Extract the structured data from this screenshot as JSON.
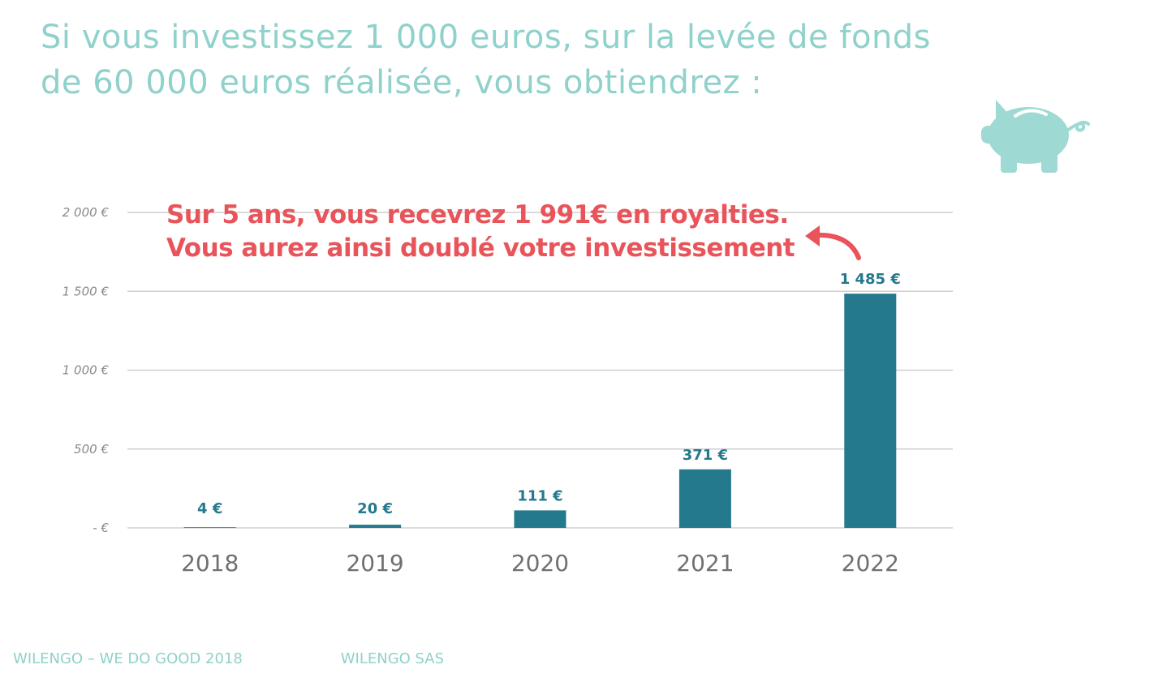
{
  "title": {
    "line1": "Si vous investissez 1 000 euros, sur la levée de fonds",
    "line2": "de 60 000 euros réalisée, vous obtiendrez :"
  },
  "icons": {
    "piggy": "piggy-bank-icon",
    "arrow": "curved-arrow-icon"
  },
  "colors": {
    "title": "#8fd1cb",
    "bar": "#24798c",
    "annotation": "#e8545a",
    "grid": "#cfcfcf",
    "piggy": "#9fd9d3",
    "footer": "#8fd1cb"
  },
  "chart_data": {
    "type": "bar",
    "categories": [
      "2018",
      "2019",
      "2020",
      "2021",
      "2022"
    ],
    "values": [
      4,
      20,
      111,
      371,
      1485
    ],
    "data_labels": [
      "4 €",
      "20 €",
      "111 €",
      "371 €",
      "1 485 €"
    ],
    "yticks": [
      {
        "value": 2000,
        "label": "2 000 €"
      },
      {
        "value": 1500,
        "label": "1 500 €"
      },
      {
        "value": 1000,
        "label": "1 000 €"
      },
      {
        "value": 500,
        "label": "500 €"
      },
      {
        "value": 0,
        "label": "-   €"
      }
    ],
    "ylim": [
      0,
      2000
    ],
    "grid": true,
    "annotation": {
      "line1": "Sur 5 ans, vous recevrez 1 991€ en royalties.",
      "line2": "Vous aurez ainsi doublé votre investissement"
    }
  },
  "footer": {
    "left": "WILENGO – WE DO GOOD 2018",
    "right": "WILENGO SAS"
  }
}
